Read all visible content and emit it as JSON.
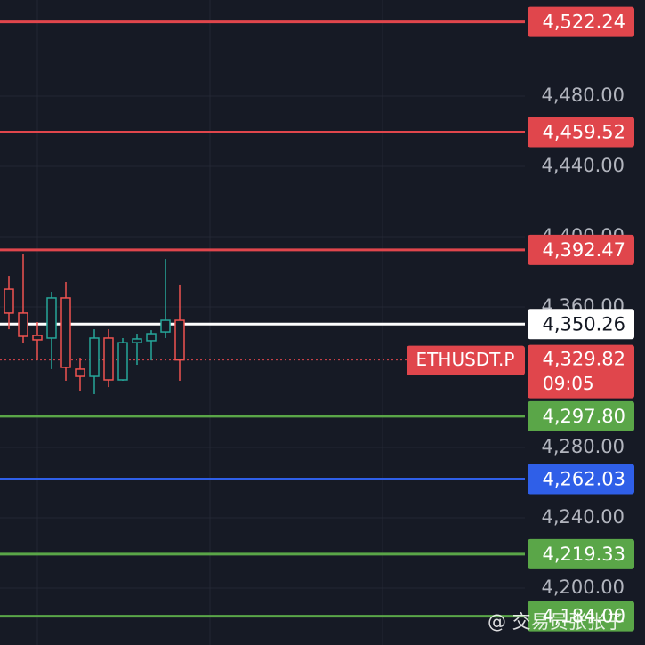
{
  "chart_data": {
    "type": "candlestick",
    "ylim": [
      4167.6,
      4534.7
    ],
    "yticks": [
      {
        "value": 4480,
        "label": "4,480.00"
      },
      {
        "value": 4440,
        "label": "4,440.00"
      },
      {
        "value": 4400,
        "label": "4,400.00"
      },
      {
        "value": 4360,
        "label": "4,360.00"
      },
      {
        "value": 4280,
        "label": "4,280.00"
      },
      {
        "value": 4240,
        "label": "4,240.00"
      },
      {
        "value": 4200,
        "label": "4,200.00"
      }
    ],
    "grid": true,
    "up_color": "#26a69a",
    "down_color": "#ef5350",
    "candles": [
      {
        "open": 4370.1,
        "high": 4377.7,
        "low": 4347.3,
        "close": 4356.5
      },
      {
        "open": 4356.5,
        "high": 4390.4,
        "low": 4339.7,
        "close": 4343.3
      },
      {
        "open": 4343.8,
        "high": 4351.4,
        "low": 4329.6,
        "close": 4341.3
      },
      {
        "open": 4342.3,
        "high": 4368.6,
        "low": 4324.6,
        "close": 4365.1
      },
      {
        "open": 4365.1,
        "high": 4374.2,
        "low": 4318.0,
        "close": 4325.6
      },
      {
        "open": 4324.6,
        "high": 4331.1,
        "low": 4311.9,
        "close": 4320.5
      },
      {
        "open": 4320.5,
        "high": 4347.3,
        "low": 4310.4,
        "close": 4342.3
      },
      {
        "open": 4342.3,
        "high": 4347.3,
        "low": 4314.4,
        "close": 4318.5
      },
      {
        "open": 4318.5,
        "high": 4342.3,
        "low": 4318.0,
        "close": 4339.7
      },
      {
        "open": 4339.7,
        "high": 4344.8,
        "low": 4327.1,
        "close": 4341.8
      },
      {
        "open": 4340.8,
        "high": 4346.8,
        "low": 4329.6,
        "close": 4344.8
      },
      {
        "open": 4345.8,
        "high": 4387.3,
        "low": 4342.3,
        "close": 4352.4
      },
      {
        "open": 4352.4,
        "high": 4372.7,
        "low": 4318.0,
        "close": 4329.82
      }
    ],
    "levels": [
      {
        "value": 4522.24,
        "label": "4,522.24",
        "color": "#e0464c"
      },
      {
        "value": 4459.52,
        "label": "4,459.52",
        "color": "#e0464c"
      },
      {
        "value": 4392.47,
        "label": "4,392.47",
        "color": "#e0464c"
      },
      {
        "value": 4350.26,
        "label": "4,350.26",
        "color": "#ffffff"
      },
      {
        "value": 4297.8,
        "label": "4,297.80",
        "color": "#5aa648"
      },
      {
        "value": 4262.03,
        "label": "4,262.03",
        "color": "#2f5fe8"
      },
      {
        "value": 4219.33,
        "label": "4,219.33",
        "color": "#5aa648"
      },
      {
        "value": 4184.0,
        "label": "4,184.00",
        "color": "#5aa648"
      }
    ],
    "last": {
      "value": 4329.82,
      "label": "4,329.82",
      "symbol": "ETHUSDT.P",
      "countdown": "09:05",
      "color": "#e0464c"
    },
    "watermark": "@ 交易员张张子"
  }
}
